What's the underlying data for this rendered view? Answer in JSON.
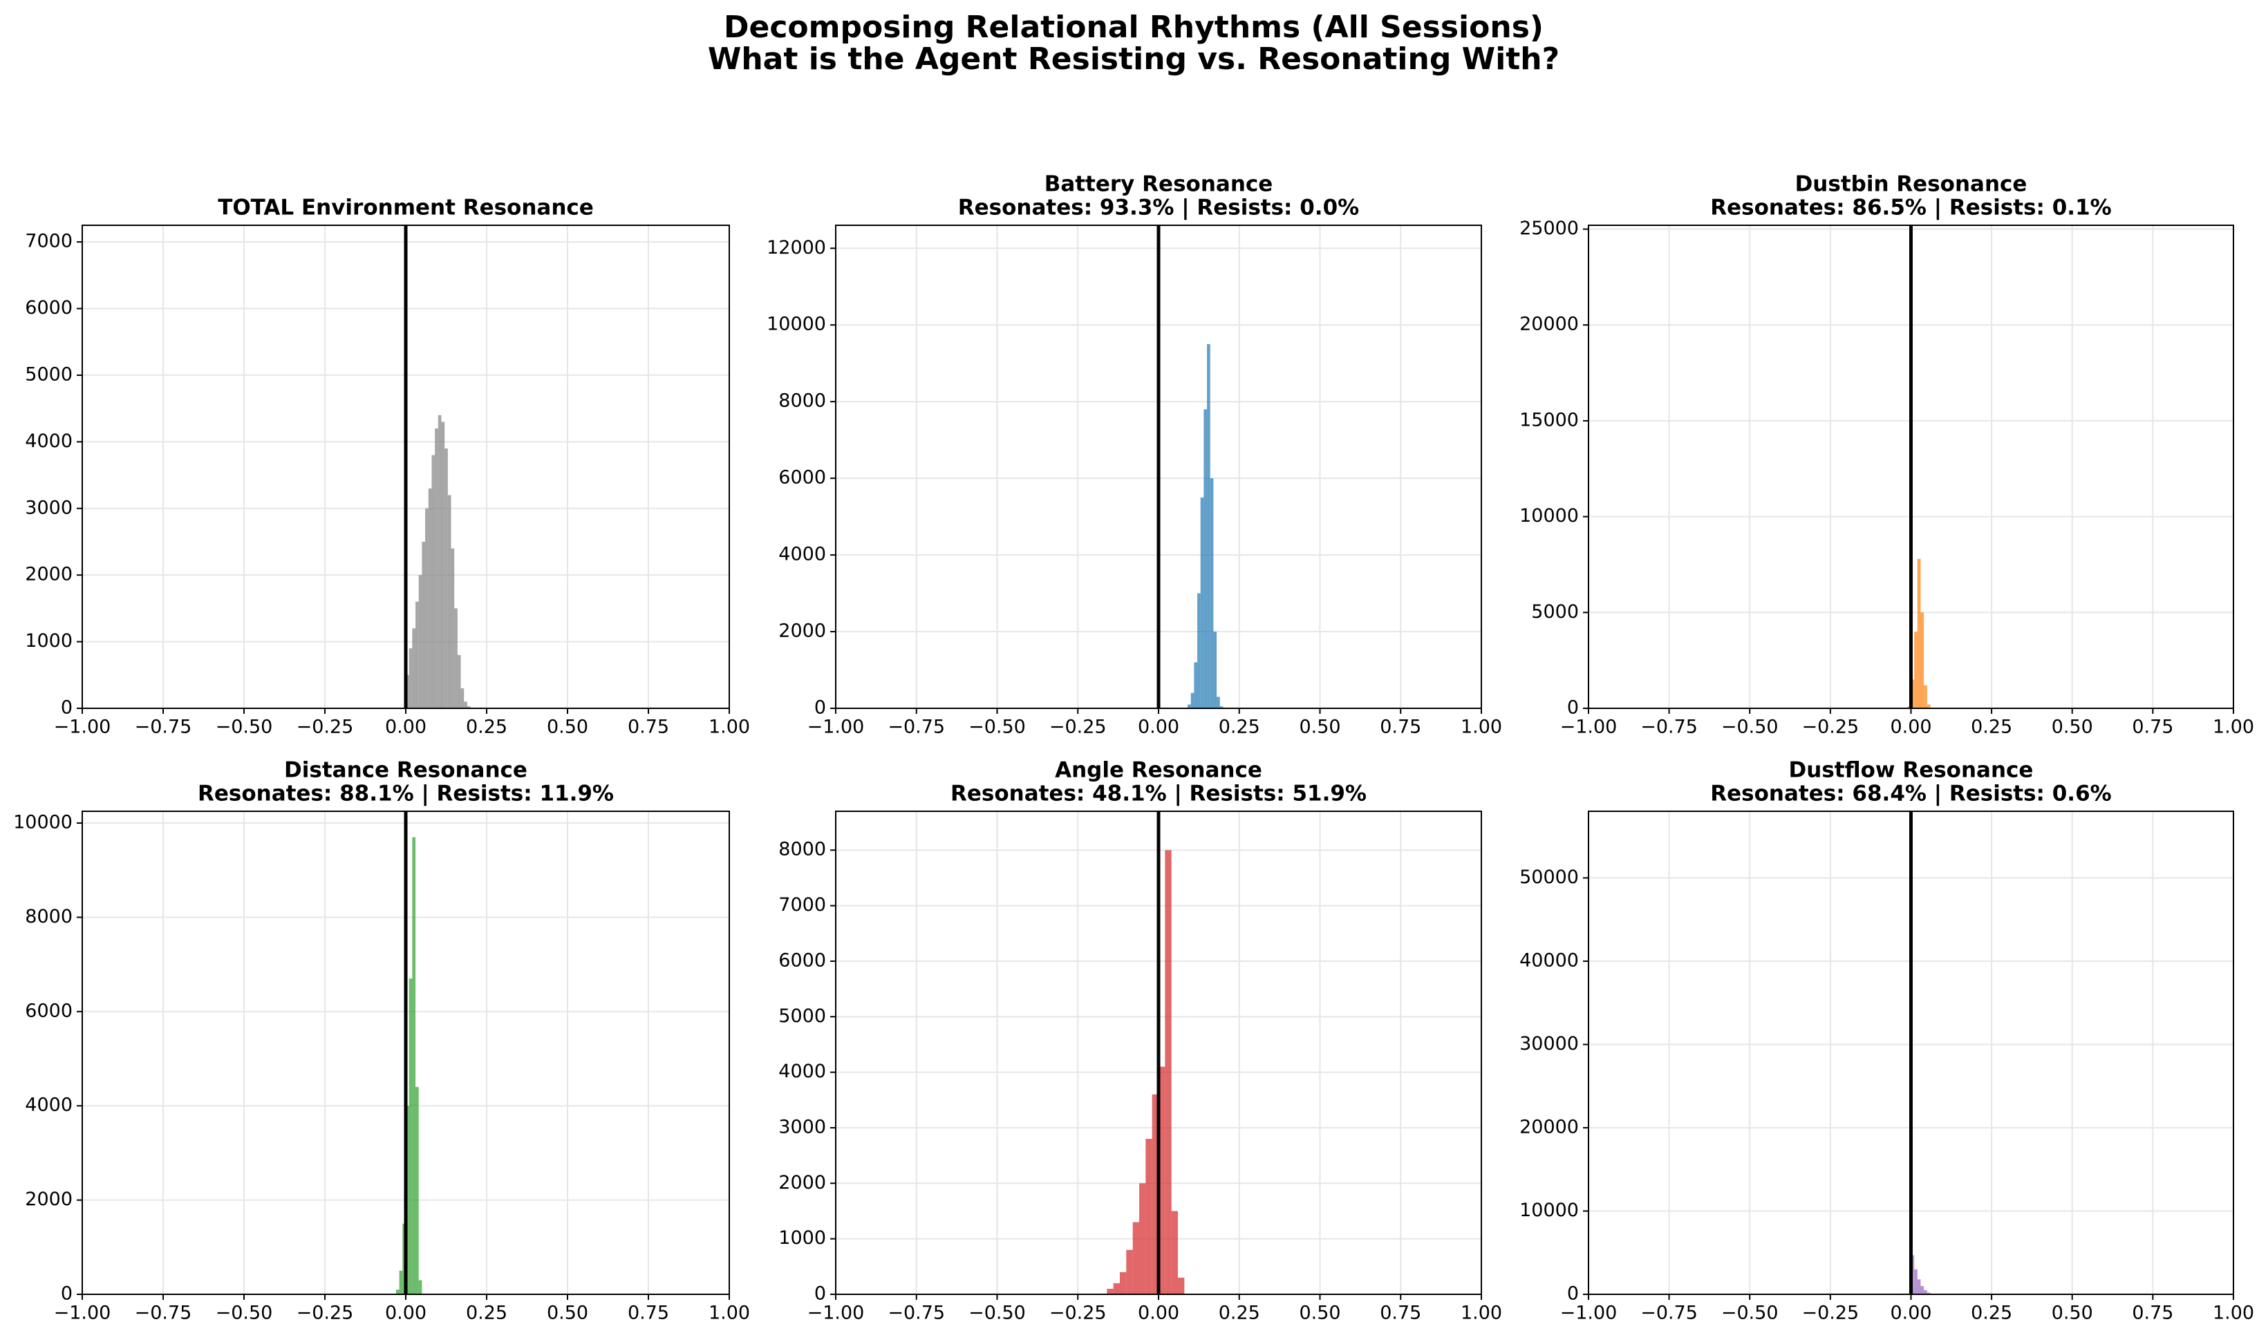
{
  "title": "Decomposing Relational Rhythms (All Sessions)",
  "subtitle": "What is the Agent Resisting vs. Resonating With?",
  "chart_data": [
    {
      "type": "histogram",
      "title": "TOTAL Environment Resonance",
      "color": "#808080",
      "alpha": 0.7,
      "grid": true,
      "vline": 0,
      "bins": [
        0,
        0.01,
        0.02,
        0.03,
        0.04,
        0.05,
        0.06,
        0.07,
        0.08,
        0.09,
        0.1,
        0.11,
        0.12,
        0.13,
        0.14,
        0.15,
        0.16,
        0.17,
        0.18,
        0.19,
        0.2
      ],
      "counts": [
        500,
        900,
        1200,
        1600,
        2000,
        2500,
        3000,
        3300,
        3800,
        4200,
        4400,
        4300,
        3900,
        3200,
        2400,
        1500,
        800,
        300,
        100,
        30
      ],
      "xlim": [
        -1,
        1
      ],
      "ylim": [
        0,
        7250
      ],
      "xticks": [
        {
          "value": -1,
          "label": "−1.00"
        },
        {
          "value": -0.75,
          "label": "−0.75"
        },
        {
          "value": -0.5,
          "label": "−0.50"
        },
        {
          "value": -0.25,
          "label": "−0.25"
        },
        {
          "value": 0,
          "label": "0.00"
        },
        0.25,
        {
          "value": 0.5,
          "label": "0.50"
        },
        0.75,
        {
          "value": 1,
          "label": "1.00"
        }
      ],
      "yticks": [
        0,
        1000,
        2000,
        3000,
        4000,
        5000,
        6000,
        7000
      ]
    },
    {
      "type": "histogram",
      "title": "Battery Resonance",
      "subtitle": "Resonates: 93.3% | Resists: 0.0%",
      "color": "#1f77b4",
      "alpha": 0.7,
      "grid": true,
      "vline": 0,
      "bins": [
        0.09,
        0.1,
        0.11,
        0.12,
        0.13,
        0.14,
        0.15,
        0.16,
        0.17,
        0.18,
        0.19,
        0.2
      ],
      "counts": [
        100,
        400,
        1200,
        3000,
        5500,
        7800,
        9500,
        6000,
        2000,
        300,
        50
      ],
      "xlim": [
        -1,
        1
      ],
      "ylim": [
        0,
        12600
      ],
      "xticks": [
        {
          "value": -1,
          "label": "−1.00"
        },
        {
          "value": -0.75,
          "label": "−0.75"
        },
        {
          "value": -0.5,
          "label": "−0.50"
        },
        {
          "value": -0.25,
          "label": "−0.25"
        },
        {
          "value": 0,
          "label": "0.00"
        },
        0.25,
        {
          "value": 0.5,
          "label": "0.50"
        },
        0.75,
        {
          "value": 1,
          "label": "1.00"
        }
      ],
      "yticks": [
        0,
        2000,
        4000,
        6000,
        8000,
        10000,
        12000
      ]
    },
    {
      "type": "histogram",
      "title": "Dustbin Resonance",
      "subtitle": "Resonates: 86.5% | Resists: 0.1%",
      "color": "#ff7f0e",
      "alpha": 0.7,
      "grid": true,
      "vline": 0,
      "bins": [
        -0.01,
        0,
        0.01,
        0.02,
        0.03,
        0.04,
        0.05,
        0.06
      ],
      "counts": [
        100,
        1500,
        4000,
        7800,
        5000,
        1200,
        200
      ],
      "xlim": [
        -1,
        1
      ],
      "ylim": [
        0,
        25200
      ],
      "xticks": [
        {
          "value": -1,
          "label": "−1.00"
        },
        {
          "value": -0.75,
          "label": "−0.75"
        },
        {
          "value": -0.5,
          "label": "−0.50"
        },
        {
          "value": -0.25,
          "label": "−0.25"
        },
        {
          "value": 0,
          "label": "0.00"
        },
        0.25,
        {
          "value": 0.5,
          "label": "0.50"
        },
        0.75,
        {
          "value": 1,
          "label": "1.00"
        }
      ],
      "yticks": [
        0,
        5000,
        10000,
        15000,
        20000,
        25000
      ]
    },
    {
      "type": "histogram",
      "title": "Distance Resonance",
      "subtitle": "Resonates: 88.1% | Resists: 11.9%",
      "color": "#2ca02c",
      "alpha": 0.7,
      "grid": true,
      "vline": 0,
      "bins": [
        -0.03,
        -0.02,
        -0.01,
        0,
        0.01,
        0.02,
        0.03,
        0.04,
        0.05
      ],
      "counts": [
        100,
        500,
        1500,
        4000,
        6700,
        9700,
        4400,
        300
      ],
      "xlim": [
        -1,
        1
      ],
      "ylim": [
        0,
        10250
      ],
      "xticks": [
        {
          "value": -1,
          "label": "−1.00"
        },
        {
          "value": -0.75,
          "label": "−0.75"
        },
        {
          "value": -0.5,
          "label": "−0.50"
        },
        {
          "value": -0.25,
          "label": "−0.25"
        },
        {
          "value": 0,
          "label": "0.00"
        },
        0.25,
        {
          "value": 0.5,
          "label": "0.50"
        },
        0.75,
        {
          "value": 1,
          "label": "1.00"
        }
      ],
      "yticks": [
        0,
        2000,
        4000,
        6000,
        8000,
        10000
      ]
    },
    {
      "type": "histogram",
      "title": "Angle Resonance",
      "subtitle": "Resonates: 48.1% | Resists: 51.9%",
      "color": "#d62728",
      "alpha": 0.7,
      "grid": true,
      "vline": 0,
      "bins": [
        -0.16,
        -0.14,
        -0.12,
        -0.1,
        -0.08,
        -0.06,
        -0.04,
        -0.02,
        0,
        0.02,
        0.04,
        0.06,
        0.08
      ],
      "counts": [
        100,
        200,
        400,
        800,
        1300,
        2000,
        2800,
        3600,
        4100,
        8000,
        1500,
        300
      ],
      "xlim": [
        -1,
        1
      ],
      "ylim": [
        0,
        8700
      ],
      "xticks": [
        {
          "value": -1,
          "label": "−1.00"
        },
        {
          "value": -0.75,
          "label": "−0.75"
        },
        {
          "value": -0.5,
          "label": "−0.50"
        },
        {
          "value": -0.25,
          "label": "−0.25"
        },
        {
          "value": 0,
          "label": "0.00"
        },
        0.25,
        {
          "value": 0.5,
          "label": "0.50"
        },
        0.75,
        {
          "value": 1,
          "label": "1.00"
        }
      ],
      "yticks": [
        0,
        1000,
        2000,
        3000,
        4000,
        5000,
        6000,
        7000,
        8000
      ]
    },
    {
      "type": "histogram",
      "title": "Dustflow Resonance",
      "subtitle": "Resonates: 68.4% | Resists: 0.6%",
      "color": "#9467bd",
      "alpha": 0.7,
      "grid": true,
      "vline": 0,
      "bins": [
        0,
        0.01,
        0.02,
        0.03,
        0.04,
        0.05,
        0.06,
        0.07,
        0.08
      ],
      "counts": [
        4700,
        3000,
        1800,
        1000,
        500,
        200,
        80,
        30
      ],
      "xlim": [
        -1,
        1
      ],
      "ylim": [
        0,
        58000
      ],
      "xticks": [
        {
          "value": -1,
          "label": "−1.00"
        },
        {
          "value": -0.75,
          "label": "−0.75"
        },
        {
          "value": -0.5,
          "label": "−0.50"
        },
        {
          "value": -0.25,
          "label": "−0.25"
        },
        {
          "value": 0,
          "label": "0.00"
        },
        0.25,
        {
          "value": 0.5,
          "label": "0.50"
        },
        0.75,
        {
          "value": 1,
          "label": "1.00"
        }
      ],
      "yticks": [
        0,
        10000,
        20000,
        30000,
        40000,
        50000
      ]
    }
  ]
}
